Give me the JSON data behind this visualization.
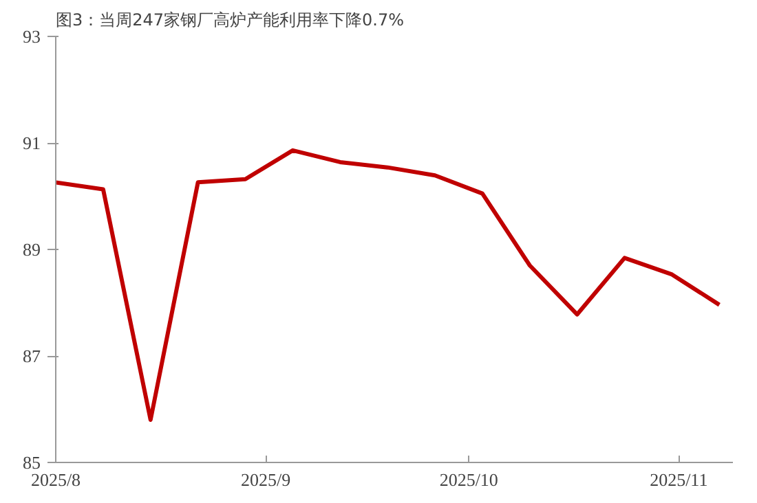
{
  "chart_data": {
    "type": "line",
    "title": "图3：当周247家钢厂高炉产能利用率下降0.7%",
    "x": [
      "2025-08-01",
      "2025-08-08",
      "2025-08-15",
      "2025-08-22",
      "2025-08-29",
      "2025-09-05",
      "2025-09-12",
      "2025-09-19",
      "2025-09-26",
      "2025-10-03",
      "2025-10-10",
      "2025-10-17",
      "2025-10-24",
      "2025-10-31",
      "2025-11-07"
    ],
    "series": [
      {
        "color": "#c00000",
        "values": [
          90.26,
          90.13,
          85.8,
          90.26,
          90.32,
          90.86,
          90.64,
          90.54,
          90.39,
          90.05,
          88.7,
          87.78,
          88.84,
          88.53,
          87.96
        ]
      }
    ],
    "xlim": [
      "2025-08-01",
      "2025-11-09"
    ],
    "xticks": [
      {
        "value": "2025-08-01",
        "label": "2025/8"
      },
      {
        "value": "2025-09-01",
        "label": "2025/9"
      },
      {
        "value": "2025-10-01",
        "label": "2025/10"
      },
      {
        "value": "2025-11-01",
        "label": "2025/11"
      }
    ],
    "ylim": [
      85,
      93
    ],
    "yticks": [
      85,
      87,
      89,
      91,
      93
    ],
    "grid": false,
    "marker": "none",
    "line_style": "solid"
  }
}
